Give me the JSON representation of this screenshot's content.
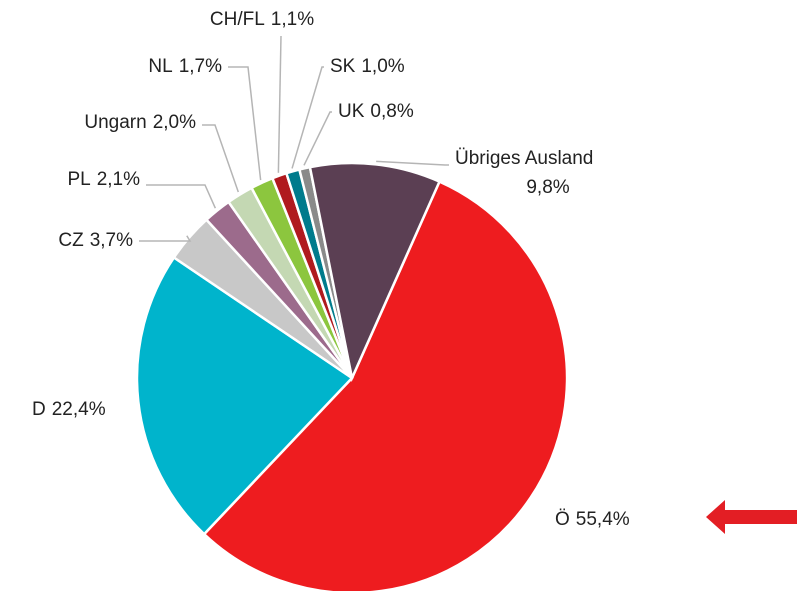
{
  "chart_data": {
    "type": "pie",
    "categories": [
      "Ö",
      "D",
      "CZ",
      "PL",
      "Ungarn",
      "NL",
      "CH/FL",
      "SK",
      "UK",
      "Übriges Ausland"
    ],
    "values": [
      55.4,
      22.4,
      3.7,
      2.1,
      2.0,
      1.7,
      1.1,
      1.0,
      0.8,
      9.8
    ],
    "value_labels": [
      "55,4%",
      "22,4%",
      "3,7%",
      "2,1%",
      "2,0%",
      "1,7%",
      "1,1%",
      "1,0%",
      "0,8%",
      "9,8%"
    ],
    "colors": [
      "#ee1c1f",
      "#00b4cc",
      "#c8c8c8",
      "#9c6b8c",
      "#c4d8b3",
      "#8cc63e",
      "#b01a1e",
      "#007b8c",
      "#8a8a8a",
      "#5b3f53"
    ]
  }
}
